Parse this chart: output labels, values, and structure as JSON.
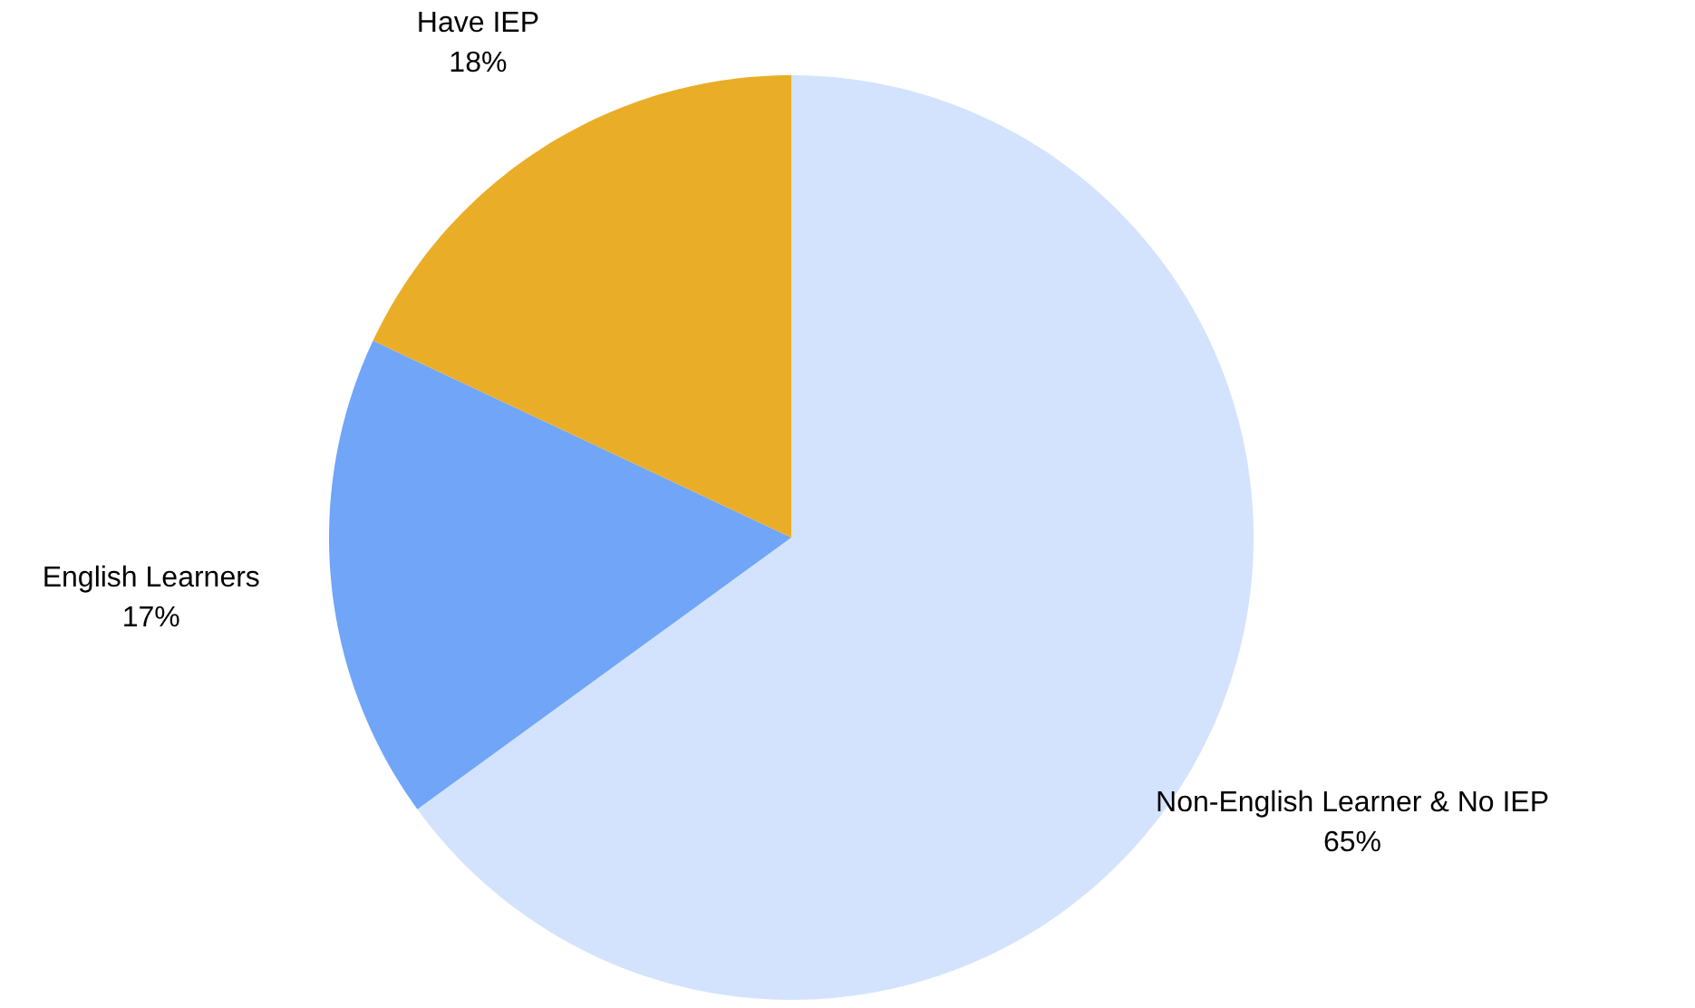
{
  "chart_data": {
    "type": "pie",
    "categories": [
      "Non-English Learner & No IEP",
      "English Learners",
      "Have IEP"
    ],
    "values": [
      65,
      17,
      18
    ],
    "colors": [
      "#d3e3fd",
      "#70a5f7",
      "#e9ad28"
    ],
    "value_labels": [
      "65%",
      "17%",
      "18%"
    ]
  }
}
